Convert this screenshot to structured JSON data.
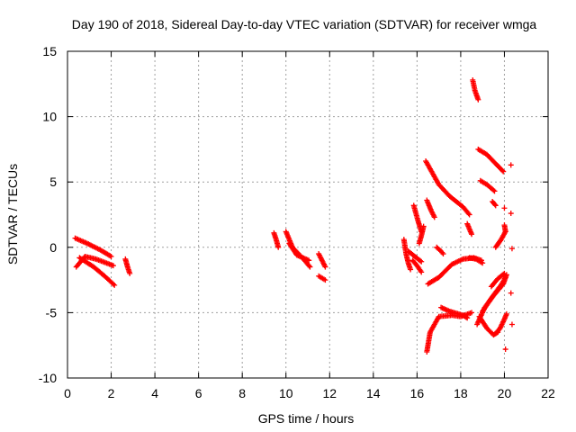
{
  "chart_data": {
    "type": "scatter",
    "title": "Day 190 of 2018, Sidereal Day-to-day VTEC variation (SDTVAR) for receiver wmga",
    "xlabel": "GPS time / hours",
    "ylabel": "SDTVAR / TECUs",
    "xlim": [
      0,
      22
    ],
    "ylim": [
      -10,
      15
    ],
    "xticks": [
      0,
      2,
      4,
      6,
      8,
      10,
      12,
      14,
      16,
      18,
      20,
      22
    ],
    "yticks": [
      -10,
      -5,
      0,
      5,
      10,
      15
    ],
    "grid": true,
    "marker": "+",
    "colors": {
      "series": "#ff0000",
      "grid": "#a0a0a0",
      "axis": "#000000"
    },
    "series": [
      {
        "name": "SDTVAR",
        "segments": [
          [
            [
              0.35,
              0.7
            ],
            [
              0.9,
              0.3
            ],
            [
              1.5,
              -0.2
            ],
            [
              2.0,
              -0.7
            ]
          ],
          [
            [
              0.4,
              -1.5
            ],
            [
              0.8,
              -0.7
            ],
            [
              1.3,
              -0.9
            ],
            [
              2.1,
              -1.4
            ]
          ],
          [
            [
              0.55,
              -0.8
            ],
            [
              1.2,
              -1.5
            ],
            [
              1.7,
              -2.2
            ],
            [
              2.15,
              -2.9
            ]
          ],
          [
            [
              2.65,
              -0.9
            ],
            [
              2.75,
              -1.5
            ],
            [
              2.85,
              -2.0
            ]
          ],
          [
            [
              9.45,
              1.1
            ],
            [
              9.55,
              0.6
            ],
            [
              9.65,
              0.0
            ]
          ],
          [
            [
              10.0,
              1.2
            ],
            [
              10.3,
              0.0
            ],
            [
              10.8,
              -0.9
            ],
            [
              11.1,
              -1.5
            ]
          ],
          [
            [
              10.15,
              0.3
            ],
            [
              10.5,
              -0.6
            ],
            [
              11.05,
              -1.0
            ]
          ],
          [
            [
              11.5,
              -0.5
            ],
            [
              11.65,
              -1.0
            ],
            [
              11.8,
              -1.5
            ]
          ],
          [
            [
              11.5,
              -2.2
            ],
            [
              11.8,
              -2.5
            ]
          ],
          [
            [
              15.4,
              0.6
            ],
            [
              15.5,
              -0.5
            ],
            [
              15.6,
              -1.2
            ],
            [
              15.7,
              -1.7
            ]
          ],
          [
            [
              15.6,
              -0.3
            ],
            [
              15.9,
              -0.7
            ],
            [
              16.2,
              -1.1
            ]
          ],
          [
            [
              15.8,
              -1.0
            ],
            [
              16.0,
              -1.4
            ],
            [
              16.2,
              -1.9
            ]
          ],
          [
            [
              15.85,
              3.2
            ],
            [
              16.05,
              2.0
            ],
            [
              16.2,
              1.2
            ]
          ],
          [
            [
              16.1,
              0.3
            ],
            [
              16.2,
              0.9
            ],
            [
              16.3,
              1.6
            ]
          ],
          [
            [
              16.45,
              3.6
            ],
            [
              16.65,
              2.8
            ],
            [
              16.8,
              2.3
            ]
          ],
          [
            [
              16.4,
              6.6
            ],
            [
              16.7,
              5.7
            ],
            [
              17.0,
              4.8
            ],
            [
              17.5,
              3.9
            ],
            [
              18.1,
              3.1
            ],
            [
              18.4,
              2.5
            ]
          ],
          [
            [
              16.9,
              0.0
            ],
            [
              17.1,
              -0.3
            ],
            [
              17.2,
              -0.5
            ]
          ],
          [
            [
              16.5,
              -2.8
            ],
            [
              17.0,
              -2.3
            ],
            [
              17.6,
              -1.3
            ],
            [
              18.1,
              -0.9
            ],
            [
              18.6,
              -0.8
            ],
            [
              18.95,
              -1.0
            ]
          ],
          [
            [
              18.3,
              1.8
            ],
            [
              18.4,
              1.4
            ],
            [
              18.5,
              1.0
            ]
          ],
          [
            [
              16.45,
              -8.0
            ],
            [
              16.6,
              -6.5
            ],
            [
              17.0,
              -5.3
            ],
            [
              17.6,
              -5.2
            ],
            [
              18.0,
              -5.3
            ],
            [
              18.5,
              -5.0
            ]
          ],
          [
            [
              17.1,
              -4.6
            ],
            [
              17.5,
              -4.9
            ],
            [
              18.1,
              -5.2
            ],
            [
              18.3,
              -5.4
            ]
          ],
          [
            [
              18.4,
              -0.8
            ],
            [
              18.7,
              -0.9
            ],
            [
              19.0,
              -1.2
            ]
          ],
          [
            [
              18.55,
              12.8
            ],
            [
              18.65,
              12.0
            ],
            [
              18.8,
              11.3
            ]
          ],
          [
            [
              18.8,
              7.5
            ],
            [
              19.2,
              7.1
            ],
            [
              19.6,
              6.4
            ],
            [
              19.95,
              5.8
            ]
          ],
          [
            [
              18.9,
              5.1
            ],
            [
              19.2,
              4.8
            ],
            [
              19.55,
              4.3
            ]
          ],
          [
            [
              19.45,
              3.5
            ],
            [
              19.6,
              3.2
            ]
          ],
          [
            [
              18.85,
              -5.3
            ],
            [
              19.2,
              -6.2
            ],
            [
              19.5,
              -6.7
            ],
            [
              19.7,
              -6.5
            ]
          ],
          [
            [
              18.75,
              -5.9
            ],
            [
              19.1,
              -4.6
            ],
            [
              19.5,
              -3.7
            ],
            [
              19.95,
              -2.8
            ],
            [
              20.1,
              -2.1
            ]
          ],
          [
            [
              19.0,
              -4.9
            ],
            [
              19.4,
              -3.9
            ],
            [
              19.75,
              -3.1
            ],
            [
              19.95,
              -2.7
            ]
          ],
          [
            [
              19.4,
              -3.0
            ],
            [
              19.7,
              -2.4
            ],
            [
              20.0,
              -2.0
            ]
          ],
          [
            [
              19.6,
              0.0
            ],
            [
              19.85,
              0.6
            ],
            [
              20.05,
              1.2
            ]
          ],
          [
            [
              19.6,
              -6.6
            ],
            [
              19.8,
              -6.2
            ],
            [
              20.0,
              -5.5
            ],
            [
              20.1,
              -5.1
            ]
          ],
          [
            [
              19.75,
              -3.2
            ],
            [
              20.05,
              -2.3
            ]
          ],
          [
            [
              20.0,
              1.7
            ],
            [
              20.05,
              1.2
            ]
          ],
          [
            [
              20.0,
              3.0
            ]
          ],
          [
            [
              20.3,
              6.3
            ]
          ],
          [
            [
              20.3,
              2.6
            ]
          ],
          [
            [
              20.35,
              -0.1
            ]
          ],
          [
            [
              20.3,
              -3.5
            ]
          ],
          [
            [
              20.35,
              -5.9
            ]
          ],
          [
            [
              20.05,
              -7.8
            ]
          ]
        ]
      }
    ]
  }
}
